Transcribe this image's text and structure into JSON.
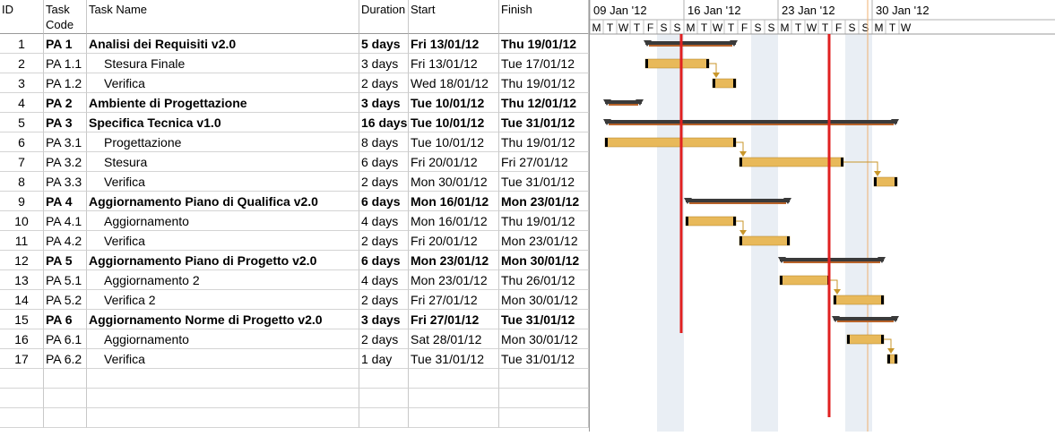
{
  "columns": {
    "id": "ID",
    "code": "Task Code",
    "name": "Task Name",
    "duration": "Duration",
    "start": "Start",
    "finish": "Finish"
  },
  "timeline": {
    "weeks": [
      "09 Jan '12",
      "16 Jan '12",
      "23 Jan '12",
      "30 Jan '12"
    ],
    "day_letters": [
      "M",
      "T",
      "W",
      "T",
      "F",
      "S",
      "S",
      "M",
      "T",
      "W",
      "T",
      "F",
      "S",
      "S",
      "M",
      "T",
      "W",
      "T",
      "F",
      "S",
      "S",
      "M",
      "T",
      "W"
    ],
    "colors": {
      "summary_bar": "#3a3a3a",
      "summary_underline": "#b8632a",
      "task_bar": "#e8b95a",
      "weekend_band": "#e9eef4",
      "marker_line": "#e02020",
      "today_line": "#f0b070",
      "link": "#c8962a"
    },
    "marker_dates": [
      "16/01/12",
      "27/01/12"
    ],
    "today": "30/01/12"
  },
  "tasks": [
    {
      "id": "1",
      "code": "PA 1",
      "name": "Analisi dei Requisiti v2.0",
      "duration": "5 days",
      "start": "Fri 13/01/12",
      "finish": "Thu 19/01/12",
      "summary": true,
      "start_day": 4,
      "end_day": 10
    },
    {
      "id": "2",
      "code": "PA 1.1",
      "name": "Stesura Finale",
      "duration": "3 days",
      "start": "Fri 13/01/12",
      "finish": "Tue 17/01/12",
      "summary": false,
      "start_day": 4,
      "end_day": 8
    },
    {
      "id": "3",
      "code": "PA 1.2",
      "name": "Verifica",
      "duration": "2 days",
      "start": "Wed 18/01/12",
      "finish": "Thu 19/01/12",
      "summary": false,
      "start_day": 9,
      "end_day": 10
    },
    {
      "id": "4",
      "code": "PA 2",
      "name": "Ambiente di Progettazione",
      "duration": "3 days",
      "start": "Tue 10/01/12",
      "finish": "Thu 12/01/12",
      "summary": true,
      "start_day": 1,
      "end_day": 3
    },
    {
      "id": "5",
      "code": "PA 3",
      "name": "Specifica Tecnica v1.0",
      "duration": "16 days",
      "start": "Tue 10/01/12",
      "finish": "Tue 31/01/12",
      "summary": true,
      "start_day": 1,
      "end_day": 22
    },
    {
      "id": "6",
      "code": "PA 3.1",
      "name": "Progettazione",
      "duration": "8 days",
      "start": "Tue 10/01/12",
      "finish": "Thu 19/01/12",
      "summary": false,
      "start_day": 1,
      "end_day": 10
    },
    {
      "id": "7",
      "code": "PA 3.2",
      "name": "Stesura",
      "duration": "6 days",
      "start": "Fri 20/01/12",
      "finish": "Fri 27/01/12",
      "summary": false,
      "start_day": 11,
      "end_day": 18
    },
    {
      "id": "8",
      "code": "PA 3.3",
      "name": "Verifica",
      "duration": "2 days",
      "start": "Mon 30/01/12",
      "finish": "Tue 31/01/12",
      "summary": false,
      "start_day": 21,
      "end_day": 22
    },
    {
      "id": "9",
      "code": "PA 4",
      "name": "Aggiornamento Piano di Qualifica v2.0",
      "duration": "6 days",
      "start": "Mon 16/01/12",
      "finish": "Mon 23/01/12",
      "summary": true,
      "start_day": 7,
      "end_day": 14
    },
    {
      "id": "10",
      "code": "PA 4.1",
      "name": "Aggiornamento",
      "duration": "4 days",
      "start": "Mon 16/01/12",
      "finish": "Thu 19/01/12",
      "summary": false,
      "start_day": 7,
      "end_day": 10
    },
    {
      "id": "11",
      "code": "PA 4.2",
      "name": "Verifica",
      "duration": "2 days",
      "start": "Fri 20/01/12",
      "finish": "Mon 23/01/12",
      "summary": false,
      "start_day": 11,
      "end_day": 14
    },
    {
      "id": "12",
      "code": "PA 5",
      "name": "Aggiornamento Piano di Progetto v2.0",
      "duration": "6 days",
      "start": "Mon 23/01/12",
      "finish": "Mon 30/01/12",
      "summary": true,
      "start_day": 14,
      "end_day": 21
    },
    {
      "id": "13",
      "code": "PA 5.1",
      "name": "Aggiornamento 2",
      "duration": "4 days",
      "start": "Mon 23/01/12",
      "finish": "Thu 26/01/12",
      "summary": false,
      "start_day": 14,
      "end_day": 17
    },
    {
      "id": "14",
      "code": "PA 5.2",
      "name": "Verifica 2",
      "duration": "2 days",
      "start": "Fri 27/01/12",
      "finish": "Mon 30/01/12",
      "summary": false,
      "start_day": 18,
      "end_day": 21
    },
    {
      "id": "15",
      "code": "PA 6",
      "name": "Aggiornamento Norme di Progetto v2.0",
      "duration": "3 days",
      "start": "Fri 27/01/12",
      "finish": "Tue 31/01/12",
      "summary": true,
      "start_day": 18,
      "end_day": 22
    },
    {
      "id": "16",
      "code": "PA 6.1",
      "name": "Aggiornamento",
      "duration": "2 days",
      "start": "Sat 28/01/12",
      "finish": "Mon 30/01/12",
      "summary": false,
      "start_day": 19,
      "end_day": 21
    },
    {
      "id": "17",
      "code": "PA 6.2",
      "name": "Verifica",
      "duration": "1 day",
      "start": "Tue 31/01/12",
      "finish": "Tue 31/01/12",
      "summary": false,
      "start_day": 22,
      "end_day": 22
    }
  ],
  "links": [
    [
      2,
      3
    ],
    [
      6,
      7
    ],
    [
      7,
      8
    ],
    [
      10,
      11
    ],
    [
      13,
      14
    ],
    [
      16,
      17
    ]
  ]
}
